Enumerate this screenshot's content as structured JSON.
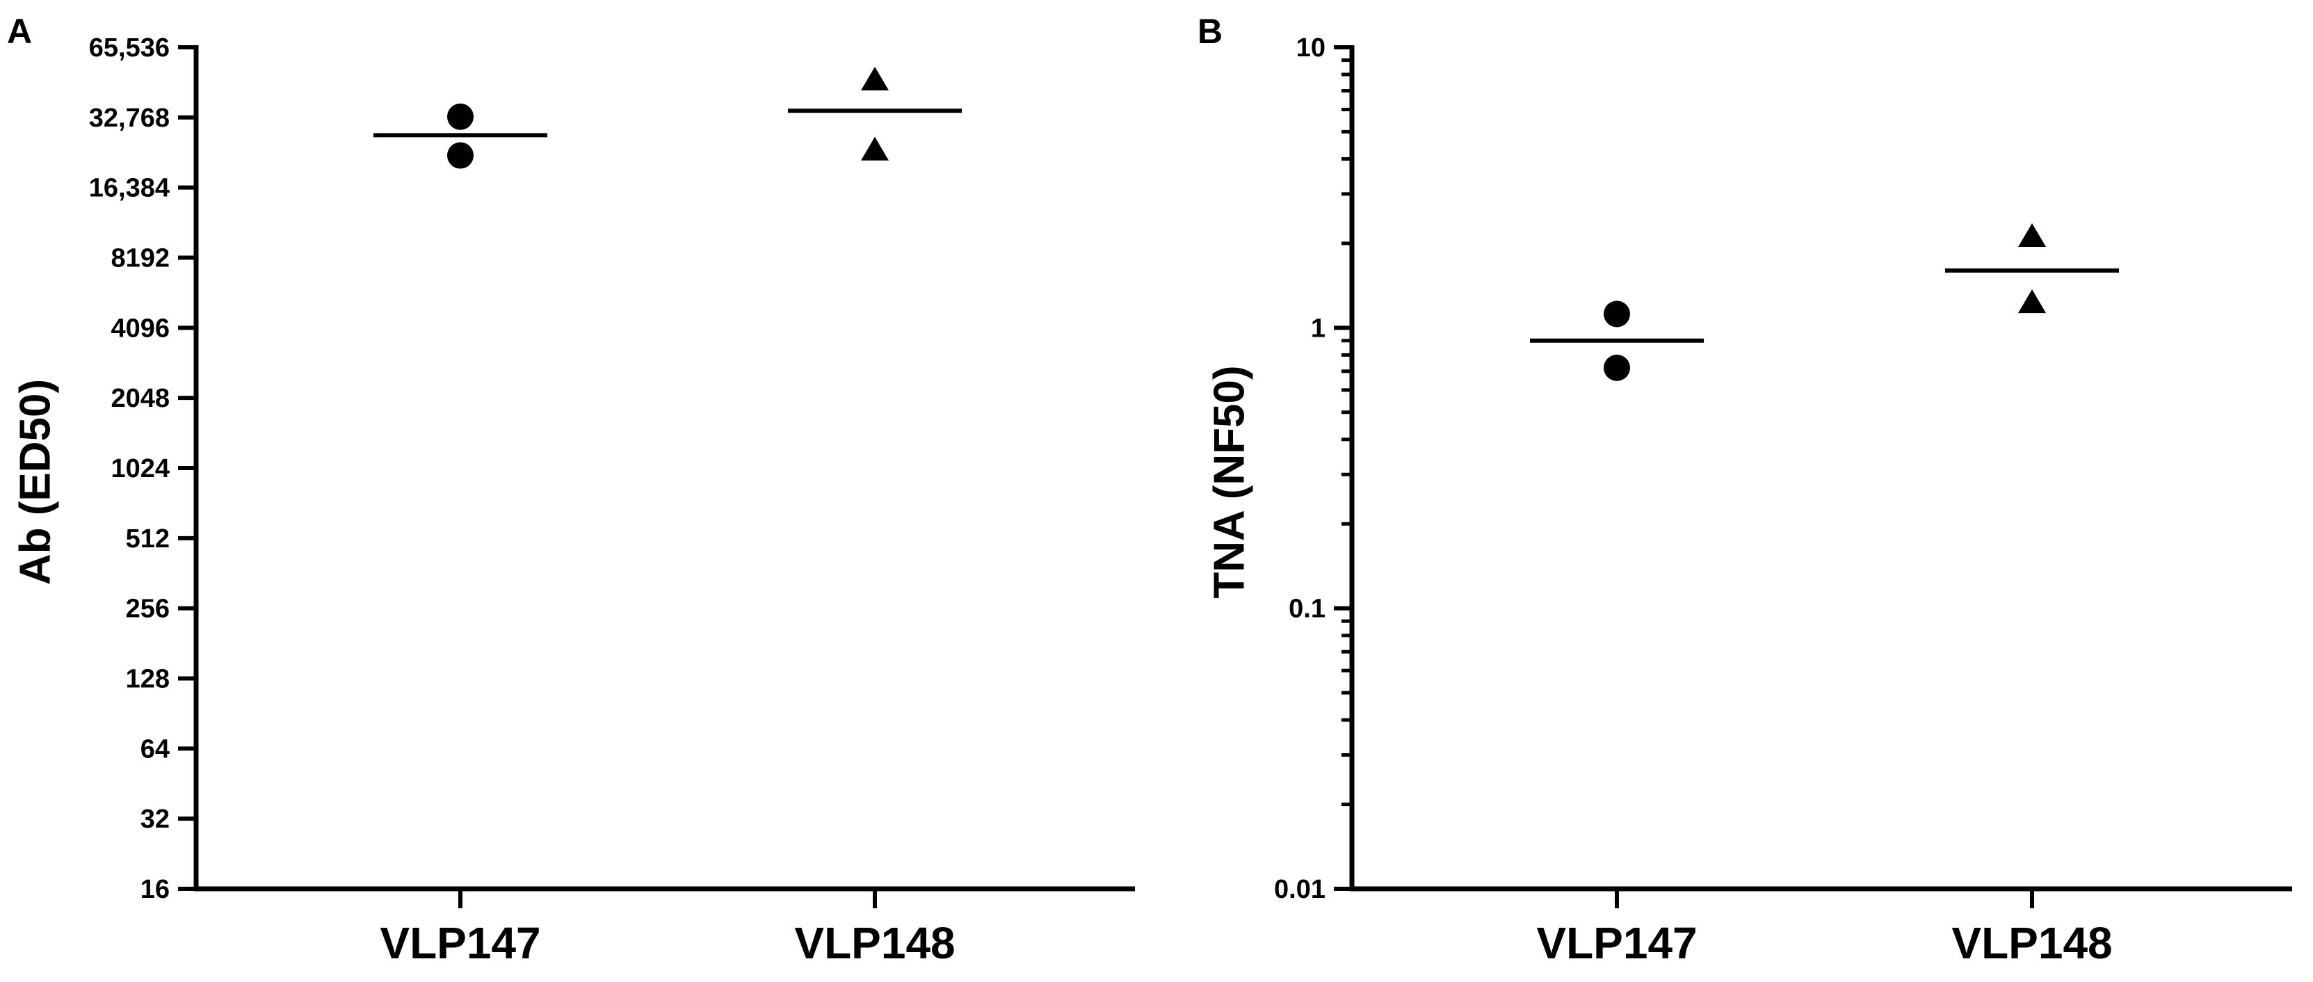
{
  "chart_data": [
    {
      "type": "scatter",
      "panel_label": "A",
      "ylabel": "Ab (ED50)",
      "xlabel": "",
      "yscale": "log2",
      "ylim": [
        16,
        65536
      ],
      "yticks": [
        16,
        32,
        64,
        128,
        256,
        512,
        1024,
        2048,
        4096,
        8192,
        16384,
        32768,
        65536
      ],
      "ytick_labels": [
        "16",
        "32",
        "64",
        "128",
        "256",
        "512",
        "1024",
        "2048",
        "4096",
        "8192",
        "16,384",
        "32,768",
        "65,536"
      ],
      "categories": [
        "VLP147",
        "VLP148"
      ],
      "series": [
        {
          "name": "VLP147",
          "marker": "circle",
          "values": [
            33000,
            22500
          ],
          "mean": 27500
        },
        {
          "name": "VLP148",
          "marker": "triangle",
          "values": [
            47000,
            23500
          ],
          "mean": 35000
        }
      ]
    },
    {
      "type": "scatter",
      "panel_label": "B",
      "ylabel": "TNA (NF50)",
      "xlabel": "",
      "yscale": "log10",
      "ylim": [
        0.01,
        10
      ],
      "yticks": [
        0.01,
        0.1,
        1,
        10
      ],
      "ytick_labels": [
        "0.01",
        "0.1",
        "1",
        "10"
      ],
      "categories": [
        "VLP147",
        "VLP148"
      ],
      "series": [
        {
          "name": "VLP147",
          "marker": "circle",
          "values": [
            1.12,
            0.72
          ],
          "mean": 0.9
        },
        {
          "name": "VLP148",
          "marker": "triangle",
          "values": [
            2.1,
            1.22
          ],
          "mean": 1.6
        }
      ]
    }
  ]
}
